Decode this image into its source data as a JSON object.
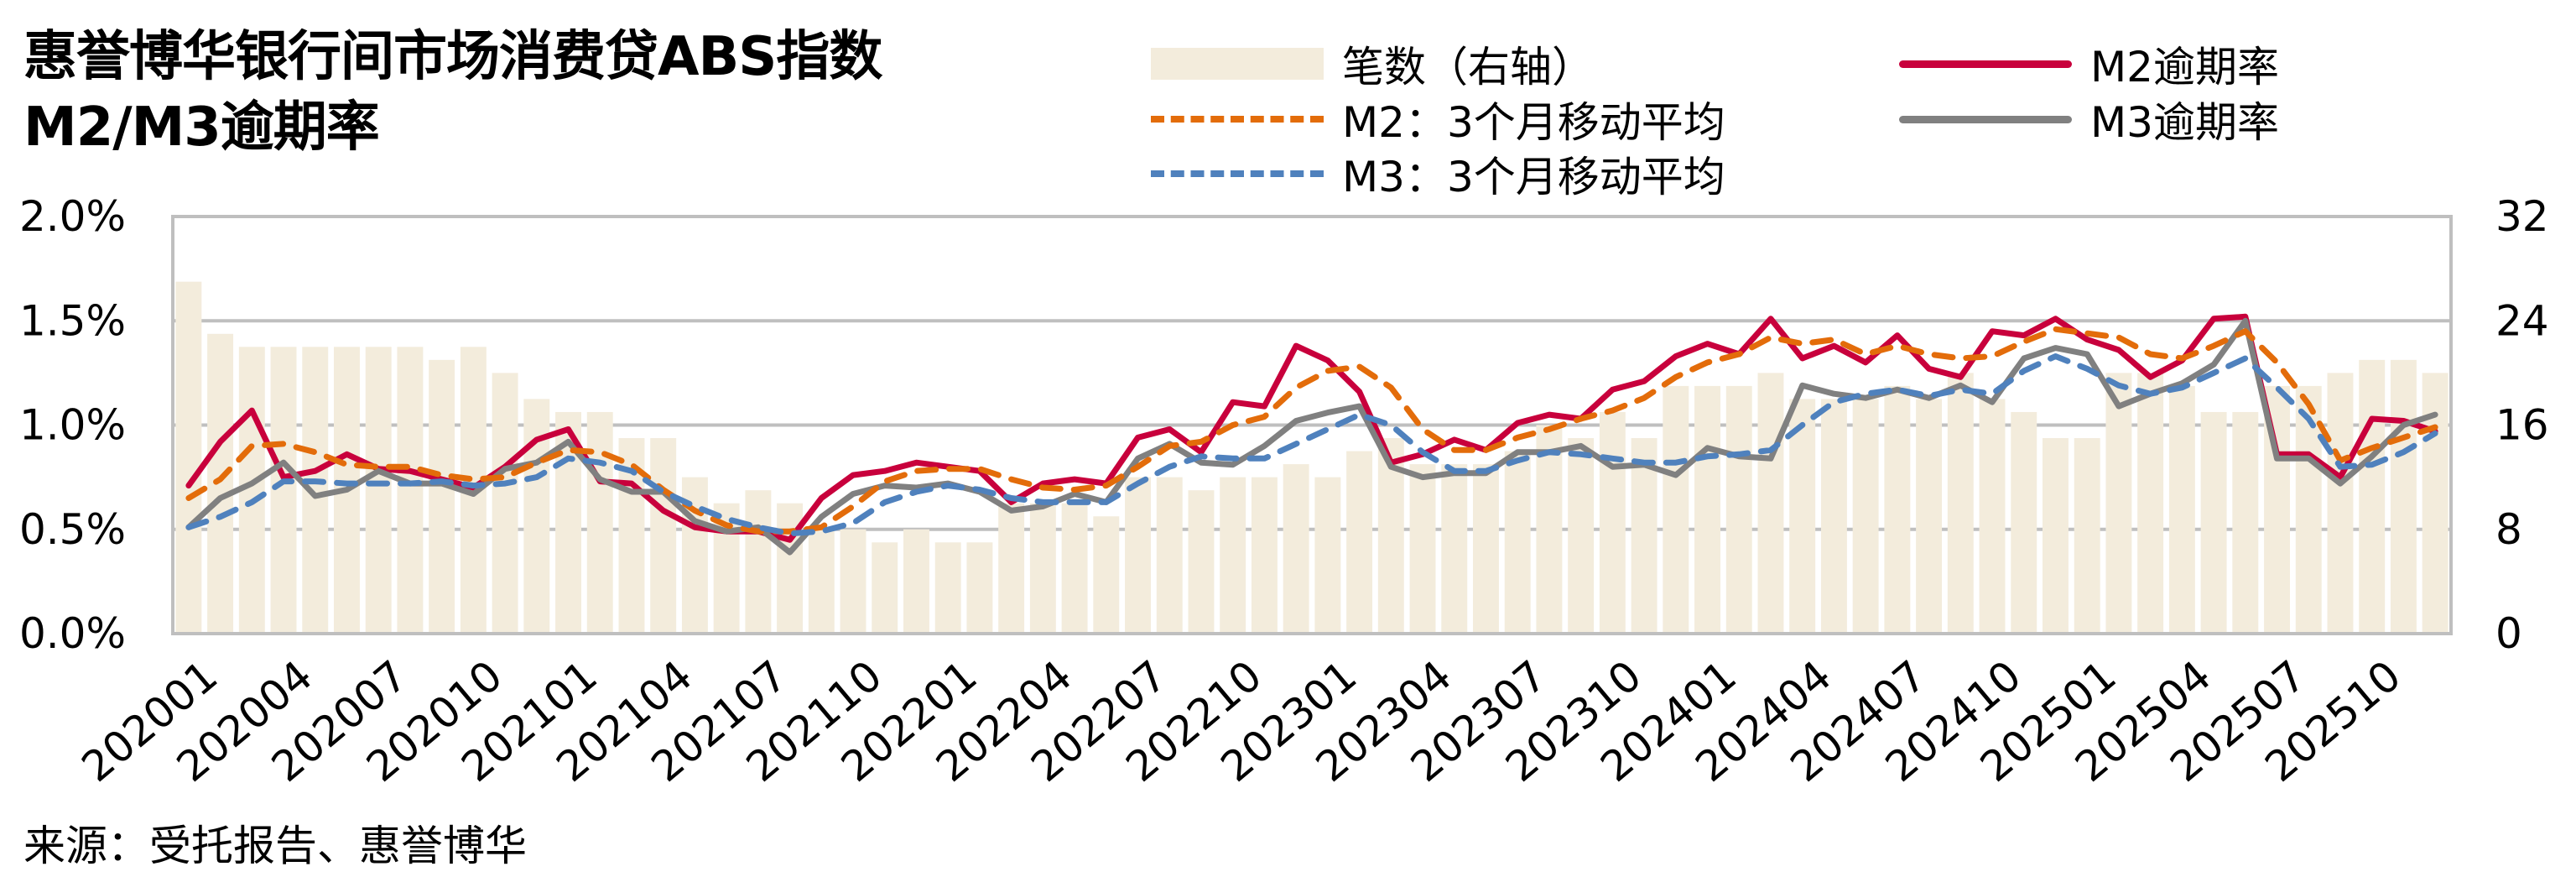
{
  "title": {
    "line1": "惠誉博华银行间市场消费贷ABS指数",
    "line2": "M2/M3逾期率"
  },
  "legend": {
    "items": [
      {
        "key": "count",
        "label": "笔数（右轴）",
        "style": "bar",
        "color": "#F3ECDC"
      },
      {
        "key": "m2_ma",
        "label": "M2：3个月移动平均",
        "style": "dashed",
        "color": "#E36C0A"
      },
      {
        "key": "m3_ma",
        "label": "M3：3个月移动平均",
        "style": "dashed",
        "color": "#4F81BD"
      },
      {
        "key": "m2",
        "label": "M2逾期率",
        "style": "solid",
        "color": "#C8003C"
      },
      {
        "key": "m3",
        "label": "M3逾期率",
        "style": "solid",
        "color": "#808080"
      }
    ]
  },
  "source": "来源：受托报告、惠誉博华",
  "colors": {
    "bar": "#F3ECDC",
    "m2": "#C8003C",
    "m3": "#808080",
    "m2_ma": "#E36C0A",
    "m3_ma": "#4F81BD",
    "grid": "#BFBFBF",
    "axis": "#BFBFBF"
  },
  "chart_data": {
    "type": "bar+line",
    "title": "惠誉博华银行间市场消费贷ABS指数 M2/M3逾期率",
    "xlabel": "",
    "ylabel": "",
    "y2label": "",
    "ylim": [
      0,
      0.02
    ],
    "y2lim": [
      0,
      32
    ],
    "yticks": [
      "0.0%",
      "0.5%",
      "1.0%",
      "1.5%",
      "2.0%"
    ],
    "y2ticks": [
      "0",
      "8",
      "16",
      "24",
      "32"
    ],
    "xtick_labels": [
      "202001",
      "202004",
      "202007",
      "202010",
      "202101",
      "202104",
      "202107",
      "202110",
      "202201",
      "202204",
      "202207",
      "202210",
      "202301",
      "202304",
      "202307",
      "202310",
      "202401",
      "202404",
      "202407",
      "202410",
      "202501",
      "202504",
      "202507",
      "202510"
    ],
    "grid": true,
    "legend_position": "top-right",
    "categories": [
      "202001",
      "202002",
      "202003",
      "202004",
      "202005",
      "202006",
      "202007",
      "202008",
      "202009",
      "202010",
      "202011",
      "202012",
      "202101",
      "202102",
      "202103",
      "202104",
      "202105",
      "202106",
      "202107",
      "202108",
      "202109",
      "202110",
      "202111",
      "202112",
      "202201",
      "202202",
      "202203",
      "202204",
      "202205",
      "202206",
      "202207",
      "202208",
      "202209",
      "202210",
      "202211",
      "202212",
      "202301",
      "202302",
      "202303",
      "202304",
      "202305",
      "202306",
      "202307",
      "202308",
      "202309",
      "202310",
      "202311",
      "202312",
      "202401",
      "202402",
      "202403",
      "202404",
      "202405",
      "202406",
      "202407",
      "202408",
      "202409",
      "202410",
      "202411",
      "202412",
      "202501",
      "202502",
      "202503",
      "202504",
      "202505",
      "202506",
      "202507",
      "202508",
      "202509",
      "202510",
      "202511",
      "202512"
    ],
    "series": [
      {
        "name": "笔数（右轴）",
        "type": "bar",
        "axis": "right",
        "values": [
          27,
          23,
          22,
          22,
          22,
          22,
          22,
          22,
          21,
          22,
          20,
          18,
          17,
          17,
          15,
          15,
          12,
          10,
          11,
          10,
          8,
          8,
          7,
          8,
          7,
          7,
          10,
          10,
          10,
          9,
          12,
          12,
          11,
          12,
          12,
          13,
          12,
          14,
          15,
          13,
          13,
          13,
          14,
          16,
          15,
          17,
          15,
          19,
          19,
          19,
          20,
          18,
          18,
          18,
          19,
          18,
          20,
          18,
          17,
          15,
          15,
          20,
          20,
          19,
          17,
          17,
          19,
          19,
          20,
          21,
          21,
          20
        ]
      },
      {
        "name": "M2逾期率",
        "type": "line",
        "axis": "left",
        "unit": "%",
        "values": [
          0.71,
          0.92,
          1.07,
          0.75,
          0.78,
          0.86,
          0.79,
          0.78,
          0.74,
          0.7,
          0.8,
          0.93,
          0.98,
          0.73,
          0.72,
          0.59,
          0.51,
          0.49,
          0.49,
          0.45,
          0.65,
          0.76,
          0.78,
          0.82,
          0.8,
          0.78,
          0.63,
          0.72,
          0.74,
          0.72,
          0.94,
          0.98,
          0.87,
          1.11,
          1.09,
          1.38,
          1.31,
          1.16,
          0.82,
          0.86,
          0.93,
          0.88,
          1.01,
          1.05,
          1.03,
          1.17,
          1.21,
          1.33,
          1.39,
          1.34,
          1.51,
          1.32,
          1.38,
          1.3,
          1.43,
          1.27,
          1.23,
          1.45,
          1.43,
          1.51,
          1.41,
          1.36,
          1.23,
          1.31,
          1.51,
          1.52,
          0.86,
          0.86,
          0.75,
          1.03,
          1.02,
          0.97
        ]
      },
      {
        "name": "M3逾期率",
        "type": "line",
        "axis": "left",
        "unit": "%",
        "values": [
          0.51,
          0.65,
          0.72,
          0.82,
          0.66,
          0.69,
          0.78,
          0.72,
          0.72,
          0.67,
          0.79,
          0.82,
          0.92,
          0.74,
          0.68,
          0.68,
          0.54,
          0.49,
          0.51,
          0.39,
          0.56,
          0.67,
          0.71,
          0.7,
          0.72,
          0.68,
          0.59,
          0.61,
          0.67,
          0.63,
          0.84,
          0.91,
          0.82,
          0.81,
          0.9,
          1.02,
          1.06,
          1.09,
          0.8,
          0.75,
          0.77,
          0.77,
          0.87,
          0.87,
          0.9,
          0.8,
          0.81,
          0.76,
          0.89,
          0.85,
          0.84,
          1.19,
          1.15,
          1.13,
          1.17,
          1.13,
          1.19,
          1.11,
          1.32,
          1.37,
          1.34,
          1.09,
          1.15,
          1.2,
          1.29,
          1.5,
          0.84,
          0.84,
          0.72,
          0.85,
          1.0,
          1.05
        ]
      },
      {
        "name": "M2：3个月移动平均",
        "type": "line",
        "style": "dashed",
        "axis": "left",
        "unit": "%",
        "values": [
          0.65,
          0.74,
          0.9,
          0.91,
          0.87,
          0.81,
          0.8,
          0.8,
          0.76,
          0.74,
          0.75,
          0.82,
          0.88,
          0.87,
          0.81,
          0.69,
          0.59,
          0.52,
          0.49,
          0.49,
          0.51,
          0.61,
          0.73,
          0.78,
          0.79,
          0.79,
          0.74,
          0.7,
          0.69,
          0.71,
          0.8,
          0.9,
          0.92,
          1.0,
          1.04,
          1.18,
          1.26,
          1.28,
          1.18,
          0.98,
          0.88,
          0.88,
          0.94,
          0.98,
          1.03,
          1.07,
          1.13,
          1.23,
          1.3,
          1.34,
          1.42,
          1.39,
          1.41,
          1.34,
          1.38,
          1.34,
          1.32,
          1.33,
          1.4,
          1.46,
          1.44,
          1.42,
          1.34,
          1.32,
          1.38,
          1.45,
          1.3,
          1.1,
          0.83,
          0.89,
          0.94,
          0.99
        ]
      },
      {
        "name": "M3：3个月移动平均",
        "type": "line",
        "style": "dashed",
        "axis": "left",
        "unit": "%",
        "values": [
          0.51,
          0.56,
          0.63,
          0.73,
          0.73,
          0.72,
          0.72,
          0.72,
          0.73,
          0.71,
          0.72,
          0.75,
          0.84,
          0.82,
          0.78,
          0.68,
          0.61,
          0.55,
          0.51,
          0.48,
          0.49,
          0.53,
          0.63,
          0.68,
          0.71,
          0.69,
          0.65,
          0.63,
          0.63,
          0.63,
          0.72,
          0.8,
          0.85,
          0.84,
          0.84,
          0.91,
          0.98,
          1.05,
          1.0,
          0.87,
          0.78,
          0.78,
          0.83,
          0.87,
          0.86,
          0.84,
          0.82,
          0.82,
          0.85,
          0.86,
          0.88,
          1.0,
          1.11,
          1.15,
          1.17,
          1.14,
          1.17,
          1.15,
          1.26,
          1.33,
          1.27,
          1.19,
          1.15,
          1.18,
          1.25,
          1.32,
          1.18,
          1.03,
          0.8,
          0.81,
          0.87,
          0.96
        ]
      }
    ]
  }
}
